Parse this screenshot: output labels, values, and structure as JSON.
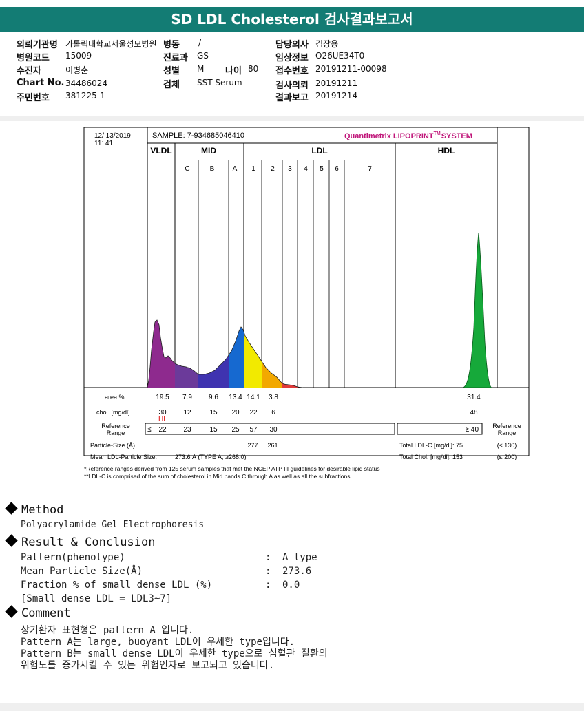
{
  "title": "SD LDL Cholesterol 검사결과보고서",
  "patient": {
    "hospital_label": "의뢰기관명",
    "hospital": "가톨릭대학교서울성모병원",
    "ward_label": "병동",
    "ward": "/ -",
    "doctor_label": "담당의사",
    "doctor": "김장용",
    "code_label": "병원코드",
    "code": "15009",
    "dept_label": "진료과",
    "dept": "GS",
    "clinical_label": "임상정보",
    "clinical": "O26UE34T0",
    "name_label": "수진자",
    "name": "이병춘",
    "sex_label": "성별",
    "sex": "M",
    "age_label": "나이",
    "age": "80",
    "receipt_label": "접수번호",
    "receipt": "20191211-00098",
    "chart_label": "Chart No.",
    "chart": "34486024",
    "specimen_label": "검체",
    "specimen": "SST Serum",
    "request_label": "검사의뢰",
    "request": "20191211",
    "id_label": "주민번호",
    "id": "381225-1",
    "report_label": "결과보고",
    "report": "20191214"
  },
  "chart_data": {
    "type": "area",
    "date": "12/ 13/2019",
    "time": "11: 41",
    "sample": "SAMPLE:   7-934685046410",
    "system": "Quantimetrix LIPOPRINT",
    "system_tm": "TM",
    "system_suffix": "SYSTEM",
    "groups": [
      "VLDL",
      "MID",
      "LDL",
      "HDL"
    ],
    "bands": [
      "C",
      "B",
      "A",
      "1",
      "2",
      "3",
      "4",
      "5",
      "6",
      "7"
    ],
    "rows": {
      "area_label": "area.%",
      "chol_label": "chol. [mg/dl]",
      "ref_label": "Reference Range",
      "area": [
        "19.5",
        "7.9",
        "9.6",
        "13.4",
        "14.1",
        "3.8"
      ],
      "area_hdl": "31.4",
      "chol": [
        "30",
        "12",
        "15",
        "20",
        "22",
        "6"
      ],
      "chol_hdl": "48",
      "hi_flag": "HI",
      "ref_prefix": "≤",
      "ref": [
        "22",
        "23",
        "15",
        "25",
        "57",
        "30"
      ],
      "ref_hdl": "≥ 40",
      "ref_right": "Reference Range"
    },
    "particle": {
      "size_label": "Particle-Size (Å)",
      "sizes": [
        "277",
        "261"
      ],
      "mean_label": "Mean LDL-Particle Size:",
      "mean_value": "273.6 Å  (TYPE A; ≥268.0)",
      "total_ldl_label": "Total LDL-C [mg/dl]: 75",
      "total_ldl_ref": "(≤ 130)",
      "total_chol_label": "Total Chol. [mg/dl]:  153",
      "total_chol_ref": "(≤ 200)"
    },
    "footnote1": "*Reference ranges derived from 125 serum samples that met the NCEP ATP III guidelines for desirable lipid status",
    "footnote2": "**LDL-C is comprised of the sum of cholesterol in Mid bands C through A as well as all the subfractions",
    "colors": {
      "vldl": "#8e2a8e",
      "mid_c": "#6b3a9a",
      "mid_b": "#3f33b0",
      "mid_a": "#1669d0",
      "ldl1": "#f2ea00",
      "ldl2": "#f2a800",
      "ldl3": "#e03a3a",
      "hdl": "#16a93a",
      "system": "#c0167a"
    }
  },
  "method": {
    "heading": "Method",
    "text": "Polyacrylamide Gel Electrophoresis"
  },
  "result": {
    "heading": "Result & Conclusion",
    "rows": [
      {
        "label": "Pattern(phenotype)",
        "value": "A type"
      },
      {
        "label": "Mean Particle Size(Å)",
        "value": "273.6"
      },
      {
        "label": "Fraction % of small dense LDL (%)",
        "value": "0.0"
      }
    ],
    "note": "[Small dense LDL = LDL3~7]",
    "sep": ":"
  },
  "comment": {
    "heading": "Comment",
    "lines": [
      "상기환자 표현형은 pattern A 입니다.",
      "Pattern A는 large, buoyant LDL이 우세한 type입니다.",
      "Pattern B는 small dense LDL이 우세한 type으로 심혈관 질환의",
      "위험도를 증가시킬 수 있는 위험인자로 보고되고 있습니다."
    ]
  }
}
